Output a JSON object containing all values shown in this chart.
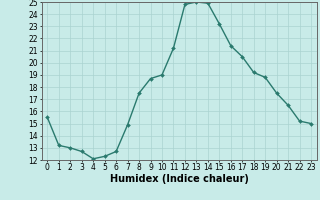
{
  "x": [
    0,
    1,
    2,
    3,
    4,
    5,
    6,
    7,
    8,
    9,
    10,
    11,
    12,
    13,
    14,
    15,
    16,
    17,
    18,
    19,
    20,
    21,
    22,
    23
  ],
  "y": [
    15.5,
    13.2,
    13.0,
    12.7,
    12.1,
    12.3,
    12.7,
    14.9,
    17.5,
    18.7,
    19.0,
    21.2,
    24.8,
    25.0,
    24.9,
    23.2,
    21.4,
    20.5,
    19.2,
    18.8,
    17.5,
    16.5,
    15.2,
    15.0
  ],
  "line_color": "#2a7a6e",
  "marker": "D",
  "markersize": 2.0,
  "linewidth": 1.0,
  "bg_color": "#c8ebe8",
  "grid_color": "#aad4d0",
  "xlabel": "Humidex (Indice chaleur)",
  "ylim_min": 12,
  "ylim_max": 25,
  "xlim_min": -0.5,
  "xlim_max": 23.5,
  "yticks": [
    12,
    13,
    14,
    15,
    16,
    17,
    18,
    19,
    20,
    21,
    22,
    23,
    24,
    25
  ],
  "xtick_labels": [
    "0",
    "1",
    "2",
    "3",
    "4",
    "5",
    "6",
    "7",
    "8",
    "9",
    "10",
    "11",
    "12",
    "13",
    "14",
    "15",
    "16",
    "17",
    "18",
    "19",
    "20",
    "21",
    "22",
    "23"
  ],
  "tick_fontsize": 5.5,
  "xlabel_fontsize": 7.0
}
